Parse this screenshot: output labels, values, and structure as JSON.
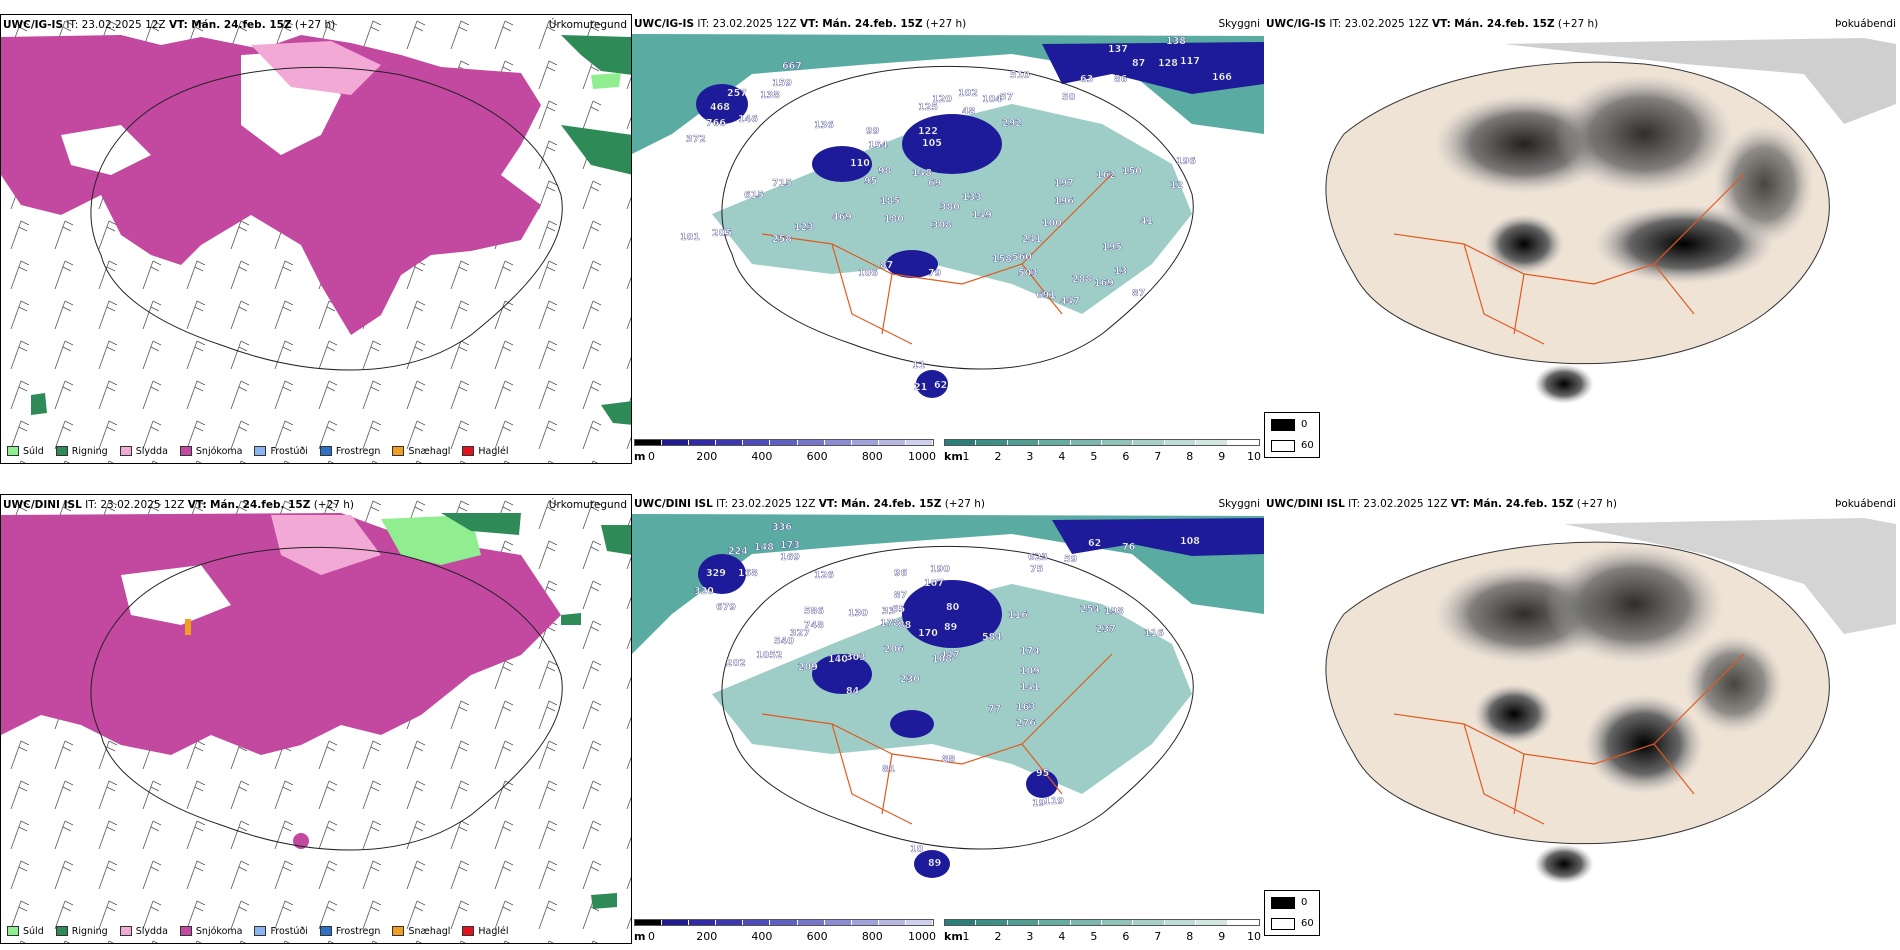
{
  "colors": {
    "drizzle": "#90ee90",
    "rain": "#2e8b57",
    "sleet": "#f2a9d6",
    "snow": "#c2499f",
    "freezing_drizzle": "#8ab6f0",
    "freezing_rain": "#2f6fc4",
    "snow_grains": "#f0a020",
    "hail": "#e0141e",
    "sea_cloud": "#3d9c90",
    "ceiling_low": "#1d1b9a",
    "fog_dark": "#000000",
    "roads": "#e05a1e"
  },
  "rows": [
    {
      "model": "UWC/IG-IS",
      "it_label": "IT:",
      "it_value": "23.02.2025 12Z",
      "vt_label": "VT:",
      "vt_value": "Mán. 24.feb. 15Z",
      "lead": "(+27 h)",
      "ceiling_values": [
        "667",
        "257",
        "159",
        "138",
        "468",
        "766",
        "146",
        "372",
        "136",
        "99",
        "125",
        "120",
        "102",
        "104",
        "57",
        "48",
        "292",
        "154",
        "105",
        "122",
        "110",
        "98",
        "95",
        "148",
        "69",
        "185",
        "180",
        "133",
        "149",
        "308",
        "380",
        "715",
        "615",
        "101",
        "205",
        "258",
        "123",
        "469",
        "87",
        "106",
        "79",
        "62",
        "21",
        "11",
        "137",
        "138",
        "87",
        "128",
        "117",
        "166",
        "510",
        "63",
        "86",
        "50",
        "196",
        "150",
        "162",
        "197",
        "196",
        "241",
        "100",
        "560",
        "503",
        "195",
        "288",
        "169",
        "691",
        "447",
        "13",
        "87",
        "158",
        "12",
        "41"
      ]
    },
    {
      "model": "UWC/DINI ISL",
      "it_label": "IT:",
      "it_value": "23.02.2025 12Z",
      "vt_label": "VT:",
      "vt_value": "Mán. 24.feb. 15Z",
      "lead": "(+27 h)",
      "ceiling_values": [
        "336",
        "224",
        "148",
        "173",
        "169",
        "329",
        "168",
        "320",
        "679",
        "126",
        "586",
        "748",
        "540",
        "327",
        "1052",
        "202",
        "209",
        "140",
        "303",
        "84",
        "206",
        "178",
        "130",
        "33",
        "87",
        "65",
        "96",
        "107",
        "190",
        "80",
        "88",
        "170",
        "89",
        "447",
        "230",
        "108",
        "584",
        "116",
        "254",
        "198",
        "237",
        "174",
        "163",
        "276",
        "95",
        "119",
        "77",
        "141",
        "109",
        "62",
        "76",
        "108",
        "59",
        "623",
        "75",
        "19",
        "89",
        "10",
        "81",
        "88",
        "116"
      ]
    }
  ],
  "panel_titles": {
    "precip": "Úrkomutegund",
    "ceiling": "Skyggni",
    "fog": "Þokuábendi"
  },
  "precip_legend": [
    {
      "label": "Súld",
      "color": "#90ee90"
    },
    {
      "label": "Rigning",
      "color": "#2e8b57"
    },
    {
      "label": "Slydda",
      "color": "#f2a9d6"
    },
    {
      "label": "Snjókoma",
      "color": "#c2499f"
    },
    {
      "label": "Frostúði",
      "color": "#8ab6f0"
    },
    {
      "label": "Frostregn",
      "color": "#2f6fc4"
    },
    {
      "label": "Snæhagl",
      "color": "#f0a020"
    },
    {
      "label": "Haglél",
      "color": "#e0141e"
    }
  ],
  "ceiling_bar": {
    "unit": "m",
    "ticks": [
      "0",
      "200",
      "400",
      "600",
      "800",
      "1000"
    ]
  },
  "visibility_bar": {
    "unit": "km",
    "ticks": [
      "1",
      "2",
      "3",
      "4",
      "5",
      "6",
      "7",
      "8",
      "9",
      "10"
    ]
  },
  "fog_legend": {
    "high": "0",
    "low": "60"
  }
}
